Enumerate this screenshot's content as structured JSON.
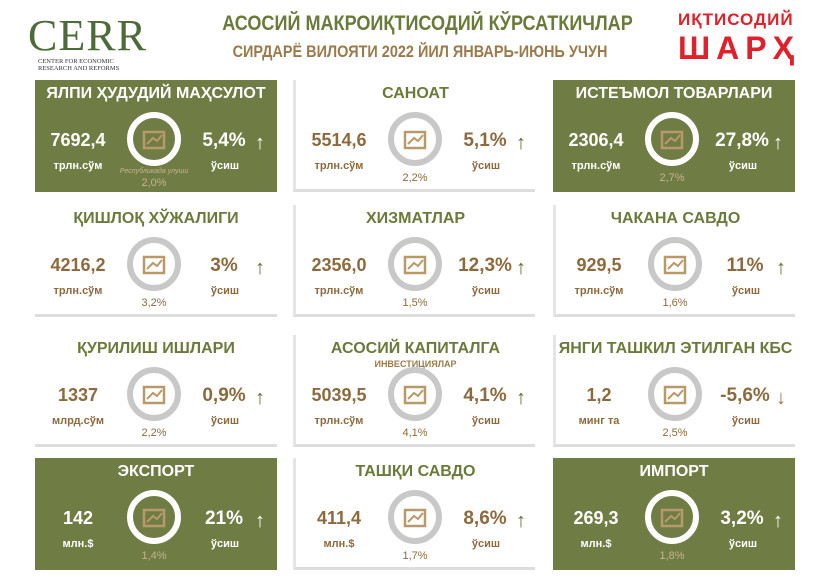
{
  "header": {
    "logo_text": "CERR",
    "logo_sub1": "CENTER FOR ECONOMIC",
    "logo_sub2": "RESEARCH AND REFORMS",
    "title": "АСОСИЙ МАКРОИҚТИСОДИЙ КЎРСАТКИЧЛАР",
    "subtitle": "СИРДАРЁ ВИЛОЯТИ 2022 ЙИЛ ЯНВАРЬ-ИЮНЬ УЧУН",
    "brand_line1": "ИҚТИСОДИЙ",
    "brand_line2": "ШАРҲ"
  },
  "colors": {
    "green": "#6f7c44",
    "brown": "#8d6a3e",
    "red": "#e0202a"
  },
  "cards": [
    {
      "title": "ЯЛПИ ҲУДУДИЙ МАҲСУЛОТ",
      "value": "7692,4",
      "unit": "трлн.сўм",
      "share": "2,0%",
      "note": "Республикада улуши",
      "growth": "5,4%",
      "growth_label": "ўсиш",
      "dir": "up",
      "icon": "chart-growth-icon",
      "style": "green"
    },
    {
      "title": "САНОАТ",
      "value": "5514,6",
      "unit": "трлн.сўм",
      "share": "2,2%",
      "growth": "5,1%",
      "growth_label": "ўсиш",
      "dir": "up",
      "icon": "factory-icon",
      "style": "white"
    },
    {
      "title": "ИСТЕЪМОЛ ТОВАРЛАРИ",
      "value": "2306,4",
      "unit": "трлн.сўм",
      "share": "2,7%",
      "growth": "27,8%",
      "growth_label": "ўсиш",
      "dir": "up",
      "icon": "shirt-icon",
      "style": "green"
    },
    {
      "title": "ҚИШЛОҚ ХЎЖАЛИГИ",
      "value": "4216,2",
      "unit": "трлн.сўм",
      "share": "3,2%",
      "growth": "3%",
      "growth_label": "ўсиш",
      "dir": "up",
      "icon": "tree-icon",
      "style": "white"
    },
    {
      "title": "ХИЗМАТЛАР",
      "value": "2356,0",
      "unit": "трлн.сўм",
      "share": "1,5%",
      "growth": "12,3%",
      "growth_label": "ўсиш",
      "dir": "up",
      "icon": "services-icon",
      "style": "white"
    },
    {
      "title": "ЧАКАНА САВДО",
      "value": "929,5",
      "unit": "трлн.сўм",
      "share": "1,6%",
      "growth": "11%",
      "growth_label": "ўсиш",
      "dir": "up",
      "icon": "basket-icon",
      "style": "white"
    },
    {
      "title": "ҚУРИЛИШ ИШЛАРИ",
      "value": "1337",
      "unit": "млрд.сўм",
      "share": "2,2%",
      "growth": "0,9%",
      "growth_label": "ўсиш",
      "dir": "up",
      "icon": "crane-icon",
      "style": "white"
    },
    {
      "title": "АСОСИЙ КАПИТАЛГА",
      "subtitle": "ИНВЕСТИЦИЯЛАР",
      "value": "5039,5",
      "unit": "трлн.сўм",
      "share": "4,1%",
      "growth": "4,1%",
      "growth_label": "ўсиш",
      "dir": "up",
      "icon": "investment-icon",
      "style": "white"
    },
    {
      "title": "ЯНГИ ТАШКИЛ ЭТИЛГАН КБС",
      "value": "1,2",
      "unit": "минг та",
      "share": "2,5%",
      "growth": "-5,6%",
      "growth_label": "ўсиш",
      "dir": "down",
      "icon": "briefcase-icon",
      "style": "white"
    },
    {
      "title": "ЭКСПОРТ",
      "value": "142",
      "unit": "млн.$",
      "share": "1,4%",
      "growth": "21%",
      "growth_label": "ўсиш",
      "dir": "up",
      "icon": "export-icon",
      "style": "green"
    },
    {
      "title": "ТАШҚИ САВДО",
      "value": "411,4",
      "unit": "млн.$",
      "share": "1,7%",
      "growth": "8,6%",
      "growth_label": "ўсиш",
      "dir": "up",
      "icon": "trade-icon",
      "style": "white"
    },
    {
      "title": "ИМПОРТ",
      "value": "269,3",
      "unit": "млн.$",
      "share": "1,8%",
      "growth": "3,2%",
      "growth_label": "ўсиш",
      "dir": "up",
      "icon": "import-icon",
      "style": "green"
    }
  ]
}
